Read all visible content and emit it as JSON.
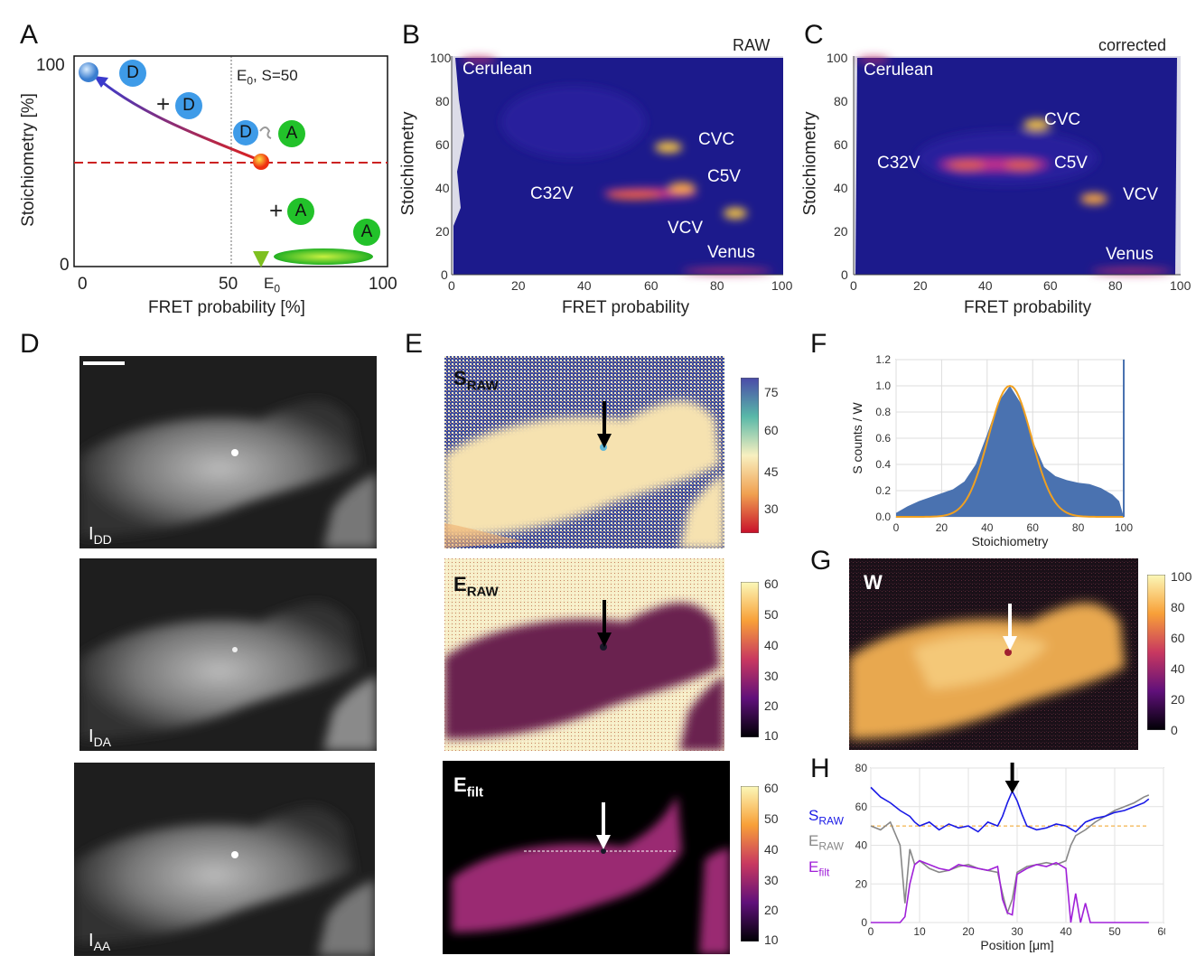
{
  "panel_letters": [
    "A",
    "B",
    "C",
    "D",
    "E",
    "F",
    "G",
    "H"
  ],
  "panelA": {
    "ylabel": "Stoichiometry [%]",
    "xlabel": "FRET probability [%]",
    "y_ticks": [
      "100",
      "0"
    ],
    "x_ticks": [
      "0",
      "50",
      "100"
    ],
    "e0_tick": "E",
    "e0_sub": "0",
    "annotation_main": "E",
    "annotation_sub": "0",
    "annotation_rest": ", S=50",
    "plus_d": "+",
    "plus_a": "+",
    "donor": "D",
    "acceptor": "A"
  },
  "panelB": {
    "corner_label": "RAW",
    "ylabel": "Stoichiometry",
    "xlabel": "FRET probability",
    "labels": [
      "Cerulean",
      "CVC",
      "C5V",
      "C32V",
      "VCV",
      "Venus"
    ]
  },
  "panelC": {
    "corner_label": "corrected",
    "ylabel": "Stoichiometry",
    "xlabel": "FRET probability",
    "labels": [
      "Cerulean",
      "CVC",
      "C32V",
      "C5V",
      "VCV",
      "Venus"
    ]
  },
  "panelD": {
    "images": [
      {
        "main": "I",
        "sub": "DD"
      },
      {
        "main": "I",
        "sub": "DA"
      },
      {
        "main": "I",
        "sub": "AA"
      }
    ]
  },
  "panelE": {
    "images": [
      {
        "main": "S",
        "sub": "RAW"
      },
      {
        "main": "E",
        "sub": "RAW"
      },
      {
        "main": "E",
        "sub": "filt"
      }
    ],
    "cbar_S": [
      "75",
      "60",
      "45",
      "30"
    ],
    "cbar_E": [
      "60",
      "50",
      "40",
      "30",
      "20",
      "10"
    ],
    "cbar_Efilt": [
      "60",
      "50",
      "40",
      "30",
      "20",
      "10"
    ]
  },
  "panelG": {
    "label": "W",
    "cbar": [
      "100",
      "80",
      "60",
      "40",
      "20",
      "0"
    ]
  },
  "panelH": {
    "legend": [
      {
        "main": "S",
        "sub": "RAW",
        "color": "#1a1ae6"
      },
      {
        "main": "E",
        "sub": "RAW",
        "color": "#888888"
      },
      {
        "main": "E",
        "sub": "filt",
        "color": "#a020d8"
      }
    ]
  },
  "chart_data": [
    {
      "type": "area",
      "panel": "F",
      "xlabel": "Stoichiometry",
      "ylabel": "S counts / W",
      "xlim": [
        0,
        100
      ],
      "ylim": [
        0,
        1.2
      ],
      "x_ticks": [
        "0",
        "20",
        "40",
        "60",
        "80",
        "100"
      ],
      "y_ticks": [
        "0.0",
        "0.2",
        "0.4",
        "0.6",
        "0.8",
        "1.0",
        "1.2"
      ],
      "grid": true,
      "x": [
        0,
        5,
        10,
        15,
        20,
        25,
        30,
        35,
        40,
        45,
        50,
        55,
        60,
        65,
        70,
        75,
        80,
        85,
        90,
        95,
        98,
        100
      ],
      "histogram": [
        0.03,
        0.08,
        0.12,
        0.15,
        0.18,
        0.21,
        0.27,
        0.4,
        0.63,
        0.88,
        1.0,
        0.86,
        0.58,
        0.38,
        0.31,
        0.28,
        0.26,
        0.25,
        0.22,
        0.17,
        0.12,
        0.0
      ],
      "gaussian_fit": {
        "center": 50,
        "sigma": 9.5,
        "amplitude": 1.0
      },
      "colors": {
        "histogram": "#4a72b0",
        "fit": "#f0a020"
      }
    },
    {
      "type": "line",
      "panel": "H",
      "xlabel": "Position [μm]",
      "xlim": [
        0,
        60
      ],
      "ylim": [
        0,
        80
      ],
      "x_ticks": [
        "0",
        "10",
        "20",
        "30",
        "40",
        "50",
        "60"
      ],
      "y_ticks": [
        "0",
        "20",
        "40",
        "60",
        "80"
      ],
      "grid": true,
      "reference_line": 50,
      "series": [
        {
          "name": "S_RAW",
          "x": [
            0,
            2,
            4,
            6,
            8,
            9,
            10,
            12,
            14,
            16,
            18,
            20,
            22,
            24,
            26,
            27,
            28,
            29,
            30,
            31,
            32,
            34,
            36,
            38,
            40,
            42,
            44,
            46,
            48,
            50,
            52,
            54,
            56,
            57
          ],
          "y": [
            70,
            65,
            62,
            58,
            55,
            52,
            50,
            52,
            48,
            51,
            49,
            50,
            47,
            52,
            50,
            55,
            62,
            68,
            63,
            56,
            50,
            48,
            49,
            51,
            50,
            47,
            52,
            54,
            55,
            57,
            58,
            60,
            62,
            64
          ]
        },
        {
          "name": "E_RAW",
          "x": [
            0,
            2,
            4,
            6,
            7,
            8,
            9,
            10,
            12,
            14,
            16,
            18,
            20,
            22,
            24,
            26,
            27,
            28,
            29,
            30,
            32,
            34,
            36,
            38,
            40,
            41,
            42,
            44,
            46,
            48,
            50,
            52,
            54,
            56,
            57
          ],
          "y": [
            50,
            48,
            52,
            40,
            10,
            38,
            30,
            32,
            28,
            26,
            27,
            29,
            30,
            28,
            27,
            26,
            15,
            5,
            12,
            26,
            29,
            30,
            31,
            30,
            32,
            40,
            45,
            48,
            52,
            55,
            58,
            60,
            62,
            65,
            66
          ]
        },
        {
          "name": "E_filt",
          "x": [
            0,
            6,
            7,
            8,
            9,
            10,
            12,
            14,
            16,
            18,
            20,
            22,
            24,
            26,
            27,
            28,
            29,
            30,
            32,
            34,
            36,
            38,
            40,
            41,
            42,
            43,
            44,
            45,
            46,
            48,
            50,
            52,
            54,
            56,
            57
          ],
          "y": [
            0,
            0,
            3,
            20,
            30,
            32,
            30,
            28,
            27,
            30,
            29,
            28,
            27,
            29,
            12,
            5,
            4,
            25,
            28,
            30,
            29,
            31,
            28,
            0,
            15,
            0,
            10,
            0,
            0,
            0,
            0,
            0,
            0,
            0,
            0
          ]
        }
      ]
    }
  ]
}
